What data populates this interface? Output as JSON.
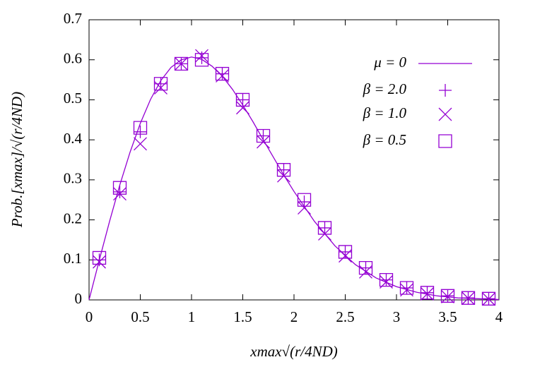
{
  "chart_data": {
    "type": "line_scatter",
    "xlabel": "xmax√(r/4ND)",
    "ylabel": "Prob.[xmax]/√(r/4ND)",
    "xlim": [
      0,
      4
    ],
    "ylim": [
      0,
      0.7
    ],
    "xticks": [
      0,
      0.5,
      1,
      1.5,
      2,
      2.5,
      3,
      3.5,
      4
    ],
    "yticks": [
      0,
      0.1,
      0.2,
      0.3,
      0.4,
      0.5,
      0.6,
      0.7
    ],
    "legend": "upper right",
    "series": [
      {
        "name": "μ = 0",
        "color": "#9400d3",
        "marker": "line",
        "x": [
          0,
          0.1,
          0.2,
          0.3,
          0.4,
          0.5,
          0.6,
          0.7,
          0.8,
          0.9,
          1.0,
          1.1,
          1.2,
          1.3,
          1.4,
          1.5,
          1.6,
          1.7,
          1.8,
          1.9,
          2.0,
          2.2,
          2.4,
          2.6,
          2.8,
          3.0,
          3.2,
          3.4,
          3.6,
          3.8,
          4.0
        ],
        "values": [
          0,
          0.0995,
          0.196,
          0.287,
          0.369,
          0.441,
          0.501,
          0.548,
          0.581,
          0.6,
          0.607,
          0.601,
          0.584,
          0.559,
          0.526,
          0.487,
          0.445,
          0.4,
          0.356,
          0.312,
          0.271,
          0.196,
          0.135,
          0.088,
          0.055,
          0.033,
          0.019,
          0.01,
          0.005,
          0.003,
          0.001
        ]
      },
      {
        "name": "β = 2.0",
        "color": "#9400d3",
        "marker": "plus",
        "x": [
          0.1,
          0.3,
          0.5,
          0.7,
          0.9,
          1.1,
          1.3,
          1.5,
          1.7,
          1.9,
          2.1,
          2.3,
          2.5,
          2.7,
          2.9,
          3.1,
          3.3,
          3.5,
          3.7,
          3.9
        ],
        "values": [
          0.1,
          0.27,
          0.42,
          0.54,
          0.59,
          0.605,
          0.565,
          0.5,
          0.41,
          0.325,
          0.245,
          0.18,
          0.12,
          0.08,
          0.05,
          0.03,
          0.018,
          0.01,
          0.005,
          0.003
        ]
      },
      {
        "name": "β = 1.0",
        "color": "#9400d3",
        "marker": "cross",
        "x": [
          0.1,
          0.3,
          0.5,
          0.7,
          0.9,
          1.1,
          1.3,
          1.5,
          1.7,
          1.9,
          2.1,
          2.3,
          2.5,
          2.7,
          2.9,
          3.1,
          3.3,
          3.5,
          3.7,
          3.9
        ],
        "values": [
          0.095,
          0.265,
          0.39,
          0.53,
          0.59,
          0.61,
          0.56,
          0.48,
          0.395,
          0.31,
          0.23,
          0.165,
          0.11,
          0.07,
          0.045,
          0.025,
          0.015,
          0.008,
          0.004,
          0.002
        ]
      },
      {
        "name": "β = 0.5",
        "color": "#9400d3",
        "marker": "square",
        "x": [
          0.1,
          0.3,
          0.5,
          0.7,
          0.9,
          1.1,
          1.3,
          1.5,
          1.7,
          1.9,
          2.1,
          2.3,
          2.5,
          2.7,
          2.9,
          3.1,
          3.3,
          3.5,
          3.7,
          3.9
        ],
        "values": [
          0.105,
          0.28,
          0.43,
          0.54,
          0.59,
          0.6,
          0.565,
          0.5,
          0.41,
          0.325,
          0.25,
          0.18,
          0.12,
          0.08,
          0.05,
          0.03,
          0.018,
          0.01,
          0.005,
          0.003
        ]
      }
    ]
  }
}
